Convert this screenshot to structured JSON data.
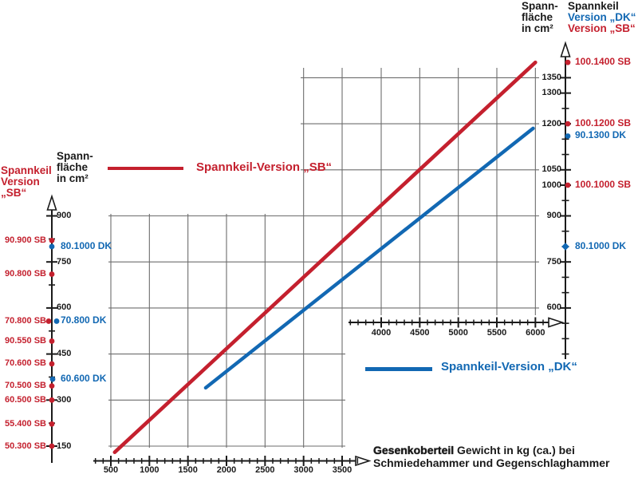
{
  "colors": {
    "sb_red": "#c4202e",
    "dk_blue": "#1268b3",
    "grid": "#6d6d6d",
    "axis": "#1a1a1a"
  },
  "top_header": {
    "area_lines": [
      "Spann-",
      "fläche",
      "in cm²"
    ],
    "keil_title": "Spannkeil",
    "keil_dk": "Version „DK“",
    "keil_sb": "Version „SB“"
  },
  "left_header": {
    "red_lines": [
      "Spannkeil",
      "Version",
      "„SB“"
    ],
    "area_lines": [
      "Spann-",
      "fläche",
      "in cm²"
    ]
  },
  "legend": {
    "sb": "Spannkeil-Version „SB“",
    "dk": "Spannkeil-Version „DK“"
  },
  "x_title": {
    "bold": "Gesenkoberteil",
    "rest": " Gewicht in kg (ca.) bei",
    "line2": "Schmiedehammer und Gegenschlaghammer"
  },
  "chart_data": {
    "type": "line",
    "xlabel": "Gesenkoberteil Gewicht in kg (ca.) bei Schmiedehammer und Gegenschlaghammer",
    "ylabel": "Spannfläche in cm²",
    "grid": true,
    "left_y_ticks": [
      900,
      750,
      600,
      450,
      300,
      150
    ],
    "right_y_ticks": [
      1350,
      1300,
      1200,
      1050,
      1000,
      900,
      750,
      600
    ],
    "bottom_x_ticks": [
      500,
      1000,
      1500,
      2000,
      2500,
      3000,
      3500
    ],
    "upper_x_ticks": [
      4000,
      4500,
      5000,
      5500,
      6000
    ],
    "series": [
      {
        "name": "Spannkeil-Version „SB“",
        "color": "#c4202e",
        "points_kg_cm2": [
          [
            550,
            130
          ],
          [
            6000,
            1400
          ]
        ],
        "x_scales": [
          "bottom",
          "upper"
        ]
      },
      {
        "name": "Spannkeil-Version „DK“",
        "color": "#1268b3",
        "points_kg_cm2": [
          [
            1730,
            340
          ],
          [
            5970,
            1185
          ]
        ],
        "x_scales": [
          "bottom",
          "upper"
        ]
      }
    ],
    "sb_markers_left": [
      {
        "label": "90.900 SB",
        "cm2": 820,
        "dx": 0
      },
      {
        "label": "90.800 SB",
        "cm2": 710,
        "dx": 0
      },
      {
        "label": "70.800 SB",
        "cm2": 557,
        "dx": -4
      },
      {
        "label": "90.550 SB",
        "cm2": 492,
        "dx": 0
      },
      {
        "label": "70.600 SB",
        "cm2": 418,
        "dx": 0
      },
      {
        "label": "70.500 SB",
        "cm2": 346,
        "dx": 0
      },
      {
        "label": "60.500 SB",
        "cm2": 300,
        "dx": 0
      },
      {
        "label": "55.400 SB",
        "cm2": 222,
        "dx": 0
      },
      {
        "label": "50.300 SB",
        "cm2": 150,
        "dx": 0
      }
    ],
    "dk_markers_left": [
      {
        "label": "80.1000 DK",
        "cm2": 800,
        "dx": 0
      },
      {
        "label": "70.800 DK",
        "cm2": 557,
        "dx": 6
      },
      {
        "label": "60.600 DK",
        "cm2": 368,
        "dx": 1
      }
    ],
    "sb_markers_right": [
      {
        "label": "100.1400 SB",
        "cm2": 1400,
        "dx": 0
      },
      {
        "label": "100.1200 SB",
        "cm2": 1200,
        "dx": 0
      },
      {
        "label": "100.1000 SB",
        "cm2": 1000,
        "dx": 0
      }
    ],
    "dk_markers_right": [
      {
        "label": "90.1300 DK",
        "cm2": 1160,
        "dx": 0,
        "shape": "circle"
      },
      {
        "label": "80.1000 DK",
        "cm2": 800,
        "dx": -3,
        "shape": "diamond"
      }
    ]
  }
}
